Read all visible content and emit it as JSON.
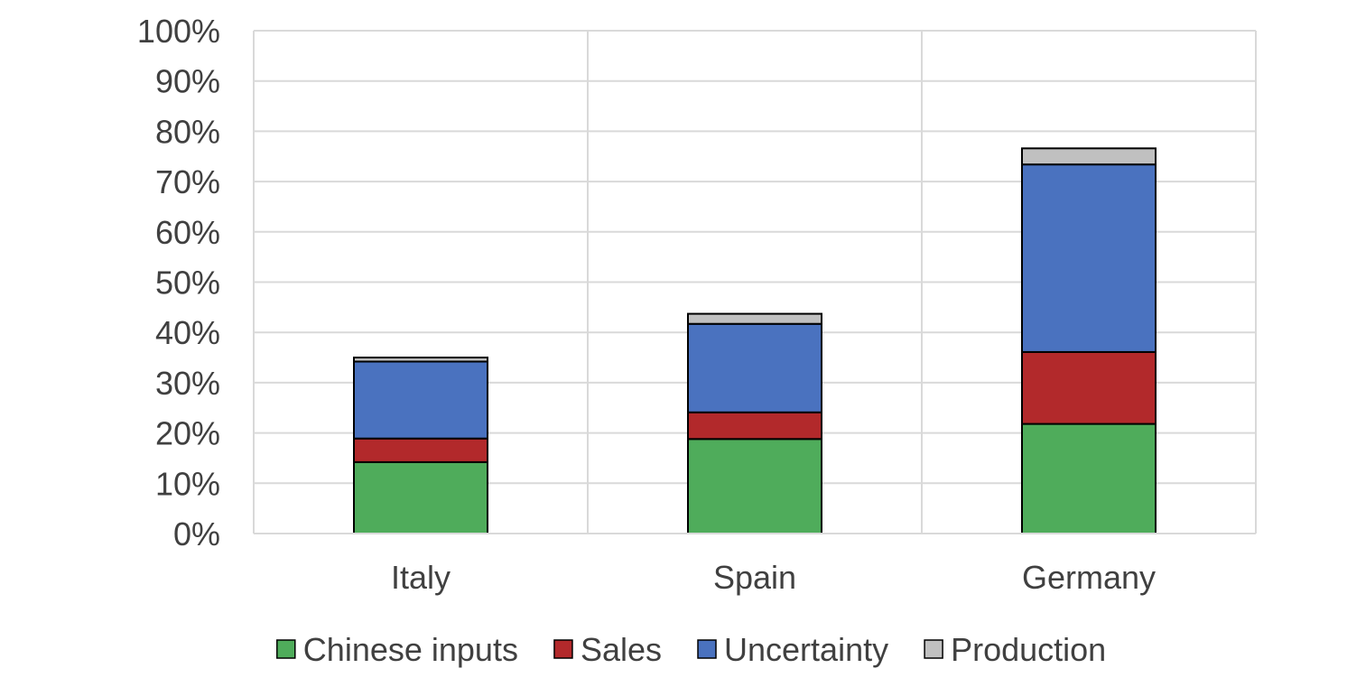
{
  "chart_data": {
    "type": "bar",
    "stacked": true,
    "title": "",
    "xlabel": "",
    "ylabel": "",
    "ylim": [
      0,
      100
    ],
    "y_tick_format": "percent",
    "y_ticks": [
      "0%",
      "10%",
      "20%",
      "30%",
      "40%",
      "50%",
      "60%",
      "70%",
      "80%",
      "90%",
      "100%"
    ],
    "categories": [
      "Italy",
      "Spain",
      "Germany"
    ],
    "series": [
      {
        "name": "Chinese inputs",
        "color": "#4fac5b",
        "values": [
          14.2,
          18.8,
          21.8
        ]
      },
      {
        "name": "Sales",
        "color": "#b2292b",
        "values": [
          4.7,
          5.3,
          14.3
        ]
      },
      {
        "name": "Uncertainty",
        "color": "#4a72bf",
        "values": [
          15.3,
          17.6,
          37.3
        ]
      },
      {
        "name": "Production",
        "color": "#c0c0c0",
        "values": [
          0.8,
          2.0,
          3.2
        ]
      }
    ],
    "grid": true,
    "legend_position": "bottom"
  }
}
